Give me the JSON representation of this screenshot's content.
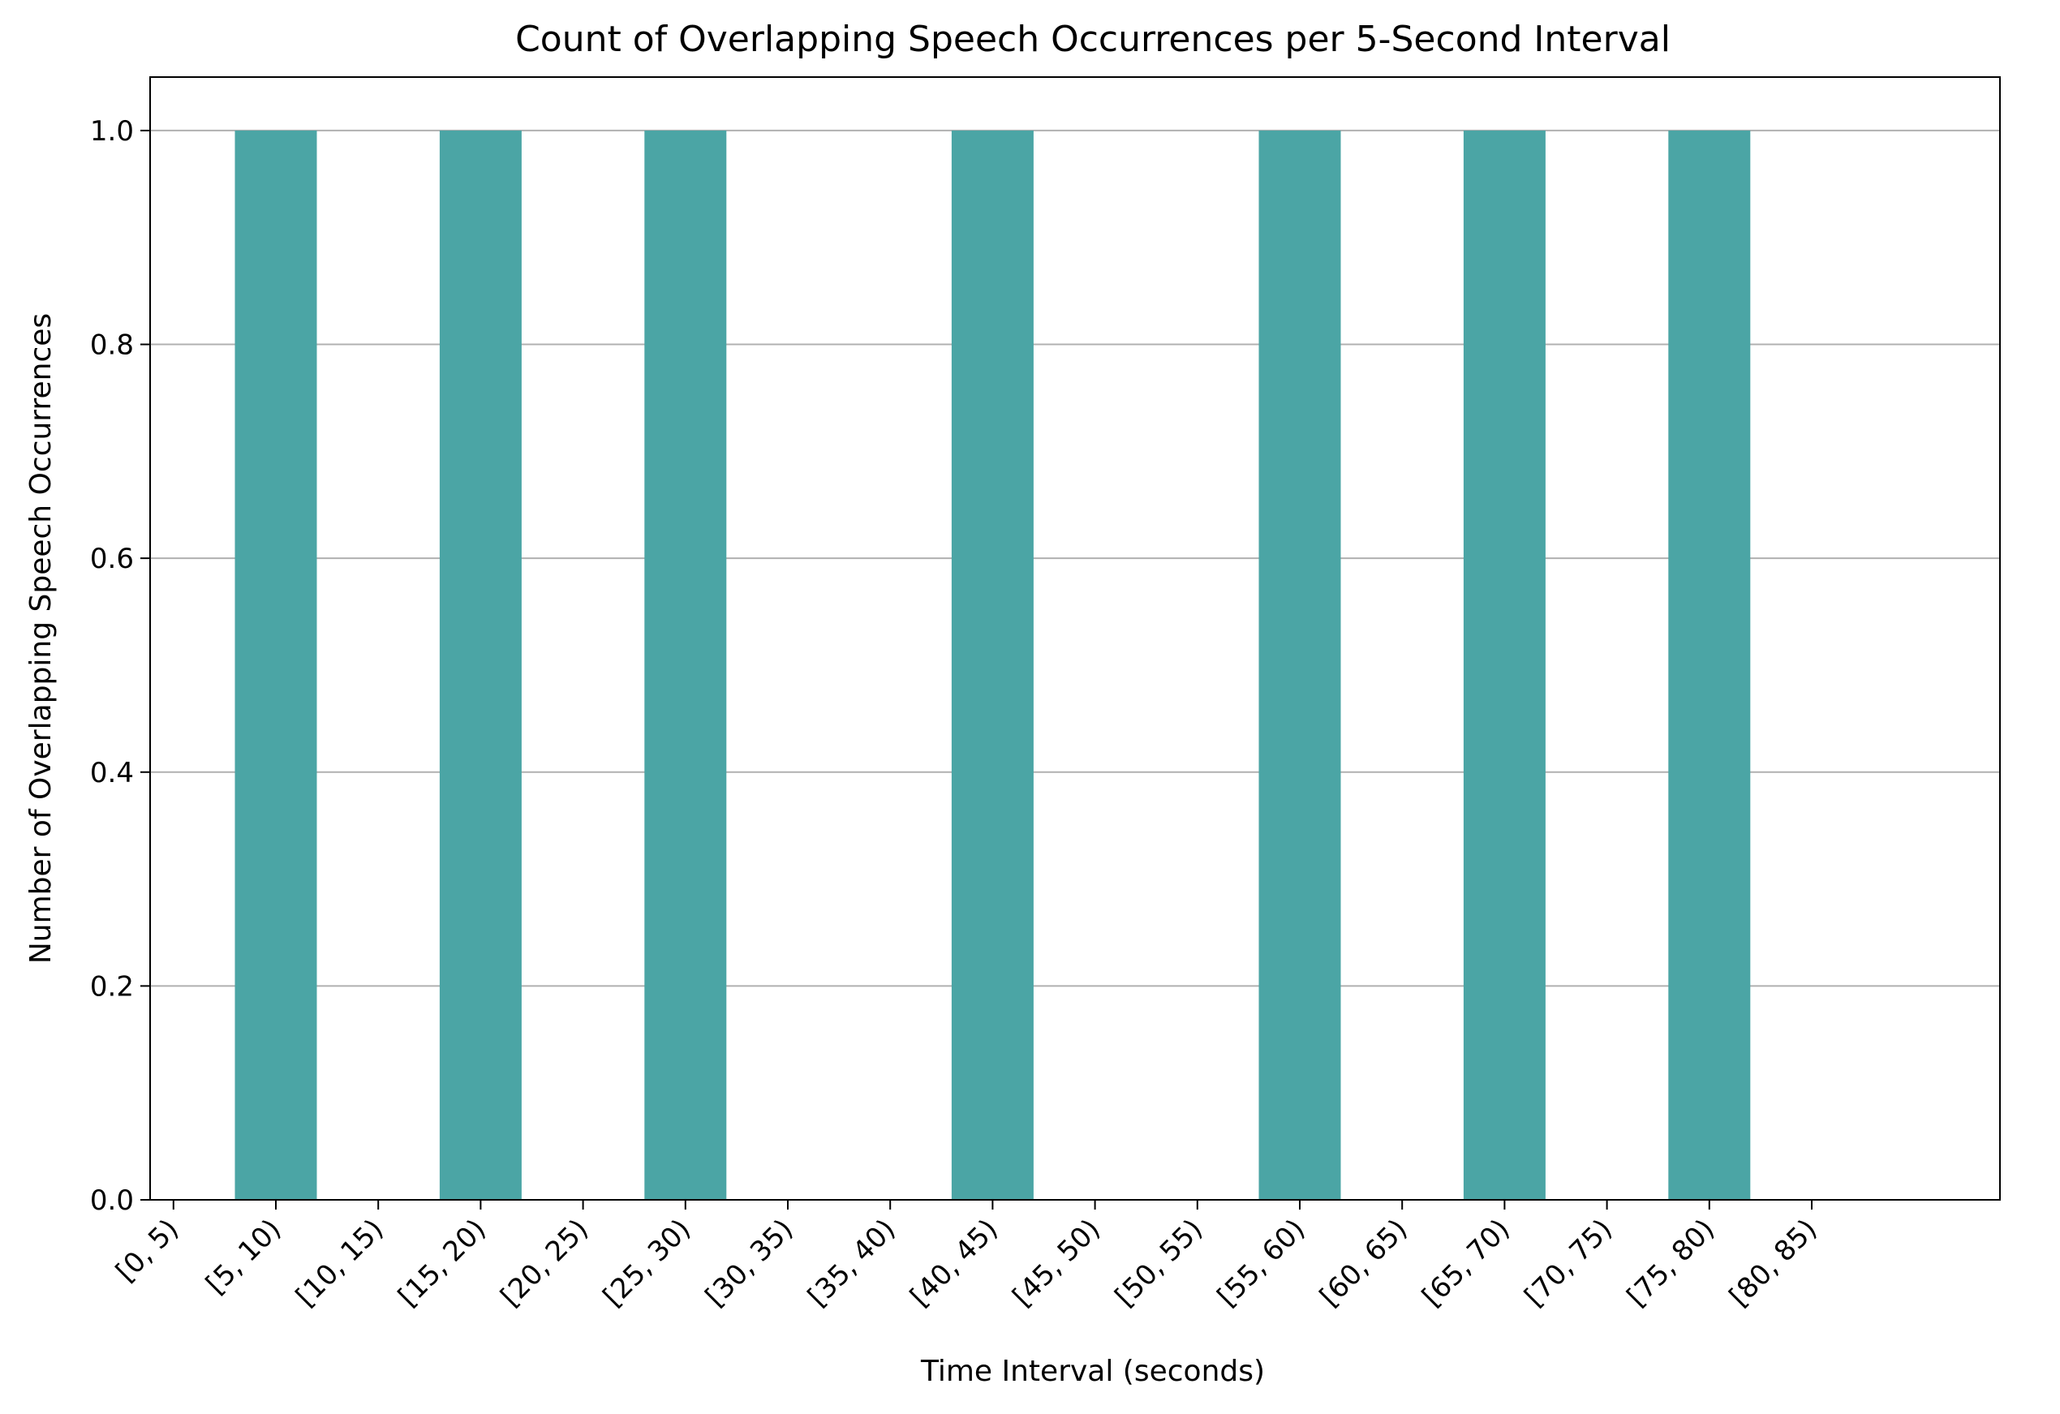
{
  "chart_data": {
    "type": "bar",
    "title": "Count of Overlapping Speech Occurrences per 5-Second Interval",
    "xlabel": "Time Interval (seconds)",
    "ylabel": "Number of Overlapping Speech Occurrences",
    "categories": [
      "[0, 5)",
      "[5, 10)",
      "[10, 15)",
      "[15, 20)",
      "[20, 25)",
      "[25, 30)",
      "[30, 35)",
      "[35, 40)",
      "[40, 45)",
      "[45, 50)",
      "[50, 55)",
      "[55, 60)",
      "[60, 65)",
      "[65, 70)",
      "[70, 75)",
      "[75, 80)",
      "[80, 85)"
    ],
    "values": [
      0,
      1,
      0,
      1,
      0,
      1,
      0,
      0,
      1,
      0,
      0,
      1,
      0,
      1,
      0,
      1,
      0
    ],
    "ylim": [
      0,
      1.05
    ],
    "yticks": [
      "0.0",
      "0.2",
      "0.4",
      "0.6",
      "0.8",
      "1.0"
    ],
    "grid": "y",
    "bar_color": "#4ba5a5"
  }
}
